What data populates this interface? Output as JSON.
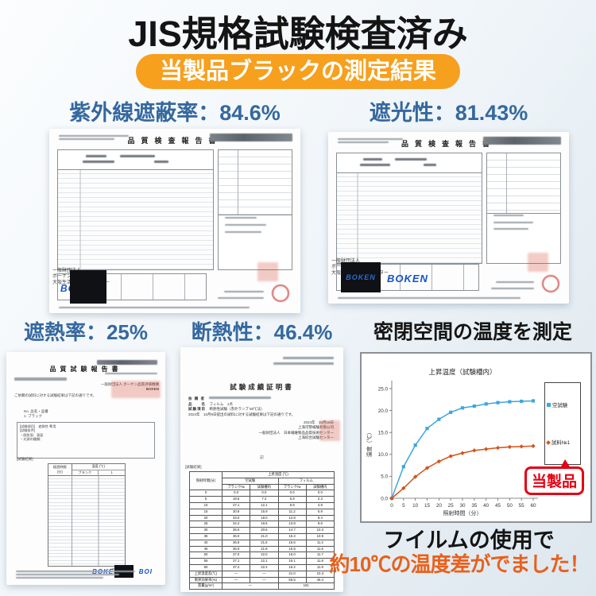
{
  "title": "JIS規格試験検査済み",
  "badge": "当製品ブラックの測定結果",
  "colors": {
    "accent_orange": "#f6a01e",
    "metric_blue": "#35689e",
    "highlight_orange": "#e8611d",
    "product_red": "#e60012",
    "line_blue": "#3ea6dc",
    "line_orange": "#d4541c"
  },
  "metrics": {
    "uv": "紫外線遮蔽率：84.6%",
    "shading": "遮光性：81.43%",
    "heat_shield": "遮熱率：25%",
    "insulation": "断熱性：46.4%",
    "sealed_space_title": "密閉空間の温度を測定"
  },
  "report_uv": {
    "title": "品質検査報告書",
    "org_lines": [
      "一般財団法人",
      "ボーケン品質評価機構",
      "大阪生活用品試験センター"
    ],
    "logo": "BOKEN"
  },
  "report_shading": {
    "title": "品質検査報告書",
    "org_lines": [
      "一般財団法人",
      "ボーケン品質評価機構",
      "大阪生活用品試験センター"
    ],
    "logo_inner": "BOKEN",
    "logo": "BOKEN"
  },
  "report_heat": {
    "title": "品質試験報告書",
    "intro": "ご依頼の試料に対する試験結果は下記の通りです。",
    "org": "一般財団法人 ボーケン品質評価機構",
    "org_logo": "BOKEN",
    "sample_line1": "No. 品名・品番",
    "sample_line2": "1. ブラック",
    "sec_item": "[試験項目]",
    "sec_item_val": "遮熱性 準用",
    "sec_cond": "[試験条件]",
    "cond1": "・照射面：表面",
    "cond2": "・光源の種類：",
    "sec_result": "[試験結果]",
    "tbl_h1": "経過時間",
    "tbl_h1u": "(分)",
    "tbl_h2": "温度 (℃)",
    "tbl_c1": "ブランク",
    "tbl_c2": "1",
    "logo": "BOKEN",
    "logo2": "BOI"
  },
  "report_insulation": {
    "title": "試験成績証明書",
    "meta_1_label": "依 頼 者",
    "meta_2_label": "品　　名",
    "meta_2_value": "フィルム　1点",
    "meta_3_label": "試験項目",
    "meta_3_value": "断熱性試験（赤外ランプ 60℃法）",
    "meta_4": "2024年　10月9日提出の試料に対する試験結果は下記の通りです。",
    "date": "2024年　10月18日",
    "org1": "上海可勢検験有限公司",
    "org2": "一般財団法人　日本繊維製品品質技術センター",
    "org3": "上海綜合試験センター",
    "ki": "記",
    "result_label": "[試験結果]",
    "table": {
      "h_time": "照射時間(分)",
      "h_temp": "上昇温度 (℃)",
      "h_blank": "空試験",
      "h_film": "フィルム",
      "h_sub1": "ブランク№",
      "h_sub2": "試験槽内",
      "rows": [
        [
          "0",
          "0.0",
          "0.0",
          "0.0",
          "0.0"
        ],
        [
          "5",
          "18.6",
          "7.2",
          "5.9",
          "2.3"
        ],
        [
          "10",
          "27.1",
          "12.1",
          "8.9",
          "4.9"
        ],
        [
          "15",
          "30.8",
          "15.9",
          "11.2",
          "6.9"
        ],
        [
          "20",
          "33.0",
          "18.0",
          "12.8",
          "8.4"
        ],
        [
          "25",
          "34.4",
          "19.6",
          "13.9",
          "9.6"
        ],
        [
          "30",
          "35.6",
          "20.6",
          "14.7",
          "10.3"
        ],
        [
          "35",
          "36.0",
          "21.0",
          "15.3",
          "10.9"
        ],
        [
          "40",
          "36.6",
          "21.5",
          "15.6",
          "11.2"
        ],
        [
          "45",
          "36.9",
          "21.8",
          "15.9",
          "11.5"
        ],
        [
          "50",
          "37.0",
          "22.0",
          "16.0",
          "11.7"
        ],
        [
          "55",
          "37.1",
          "22.1",
          "16.1",
          "11.8"
        ],
        [
          "60",
          "37.2",
          "22.2",
          "16.2",
          "11.9"
        ],
        [
          "上昇温度差(℃)",
          "—",
          "—",
          "21.0",
          "10.3"
        ],
        [
          "断熱効果率(%)",
          "—",
          "—",
          "56.5",
          "46.4"
        ],
        [
          "質量(g/m²)",
          {
            "t": "—",
            "s": 2
          },
          {
            "t": "191",
            "s": 2
          }
        ]
      ]
    }
  },
  "chart_data": {
    "type": "line",
    "title": "上昇温度（試験槽内）",
    "xlabel": "照射時間（分）",
    "ylabel": "温度（℃）",
    "x": [
      0,
      5,
      10,
      15,
      20,
      25,
      30,
      35,
      40,
      45,
      50,
      55,
      60
    ],
    "ylim": [
      0,
      25
    ],
    "yticks": [
      "0.0",
      "5.0",
      "10.0",
      "15.0",
      "20.0",
      "25.0"
    ],
    "grid": false,
    "legend_position": "right",
    "series": [
      {
        "name": "空試験",
        "marker": "square",
        "color": "#3ea6dc",
        "values": [
          0.0,
          7.2,
          12.1,
          15.9,
          18.0,
          19.6,
          20.6,
          21.0,
          21.5,
          21.8,
          22.0,
          22.1,
          22.2
        ]
      },
      {
        "name": "試料№1",
        "marker": "diamond",
        "color": "#d4541c",
        "values": [
          0.0,
          2.3,
          4.9,
          6.9,
          8.4,
          9.6,
          10.3,
          10.9,
          11.2,
          11.5,
          11.7,
          11.8,
          11.9
        ]
      }
    ]
  },
  "chart_panel": {
    "bubble": "当製品"
  },
  "footer": {
    "line1": "フイルムの使用で",
    "line2": "約10℃の温度差がでました！"
  }
}
